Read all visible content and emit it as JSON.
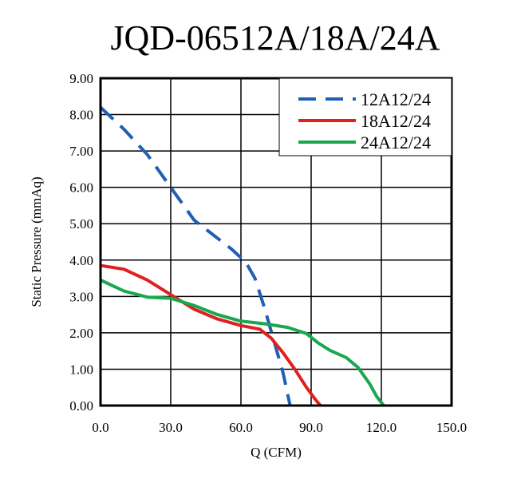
{
  "chart_data": {
    "type": "line",
    "title": "JQD-06512A/18A/24A",
    "xlabel": "Q (CFM)",
    "ylabel": "Static Pressure (mmAq)",
    "xlim": [
      0,
      150
    ],
    "ylim": [
      0,
      9
    ],
    "xticks": [
      0,
      30,
      60,
      90,
      120,
      150
    ],
    "yticks": [
      0,
      1,
      2,
      3,
      4,
      5,
      6,
      7,
      8,
      9
    ],
    "xtick_labels": [
      "0.0",
      "30.0",
      "60.0",
      "90.0",
      "120.0",
      "150.0"
    ],
    "ytick_labels": [
      "0.00",
      "1.00",
      "2.00",
      "3.00",
      "4.00",
      "5.00",
      "6.00",
      "7.00",
      "8.00",
      "9.00"
    ],
    "grid": true,
    "legend_position": "top-right",
    "series": [
      {
        "name": "12A12/24",
        "color": "#1f5fb4",
        "dash": "dashed",
        "x": [
          0,
          10,
          20,
          30,
          40,
          50,
          56,
          62,
          66,
          70,
          74,
          78,
          81
        ],
        "y": [
          8.2,
          7.6,
          6.9,
          6.0,
          5.1,
          4.6,
          4.3,
          3.95,
          3.5,
          2.7,
          1.8,
          0.9,
          0.0
        ]
      },
      {
        "name": "18A12/24",
        "color": "#e02020",
        "dash": "solid",
        "x": [
          0,
          10,
          20,
          30,
          40,
          50,
          60,
          68,
          73,
          78,
          83,
          88,
          92,
          94
        ],
        "y": [
          3.85,
          3.75,
          3.45,
          3.05,
          2.65,
          2.38,
          2.2,
          2.1,
          1.85,
          1.45,
          1.0,
          0.5,
          0.15,
          0.0
        ]
      },
      {
        "name": "24A12/24",
        "color": "#18a850",
        "dash": "solid",
        "x": [
          0,
          10,
          20,
          30,
          40,
          50,
          60,
          70,
          80,
          88,
          93,
          98,
          105,
          110,
          115,
          118,
          121
        ],
        "y": [
          3.45,
          3.15,
          2.98,
          2.95,
          2.75,
          2.5,
          2.32,
          2.25,
          2.15,
          1.98,
          1.72,
          1.52,
          1.32,
          1.05,
          0.6,
          0.25,
          0.0
        ]
      }
    ]
  }
}
